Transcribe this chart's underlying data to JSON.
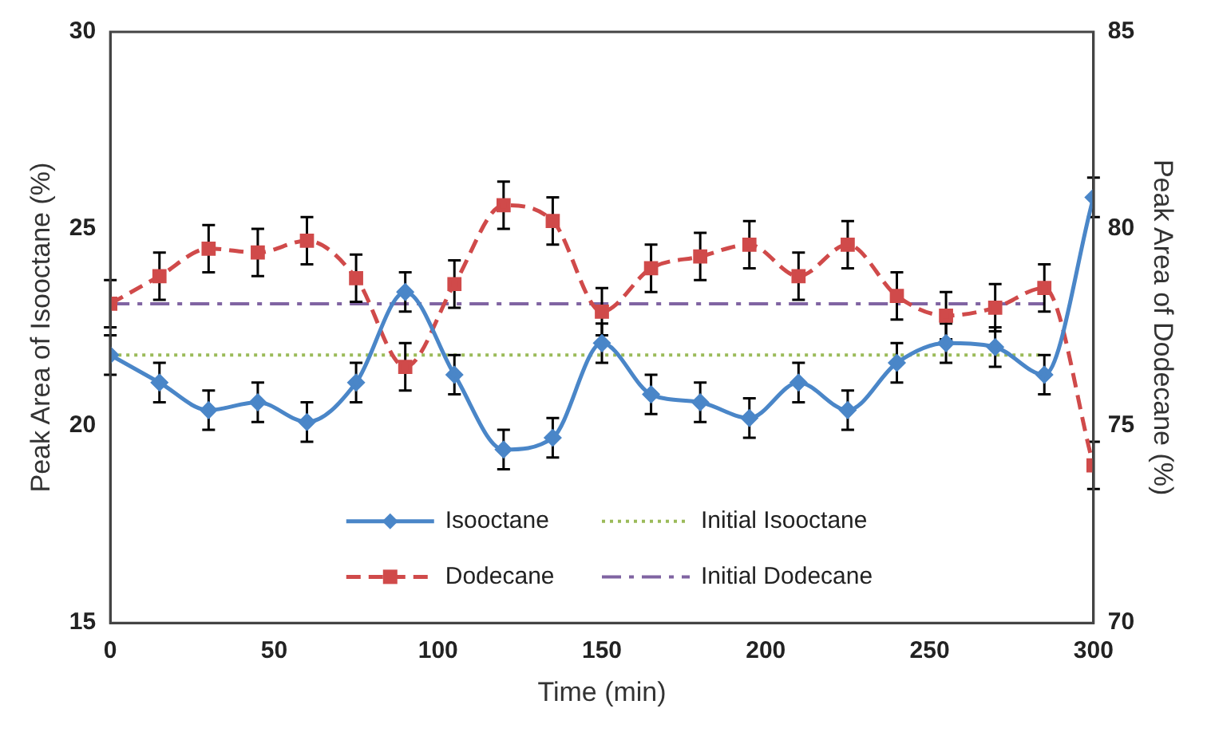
{
  "chart_data": {
    "type": "line",
    "xlabel": "Time (min)",
    "ylabel": "Peak Area of Isooctane (%)",
    "y2label": "Peak Area of Dodecane (%)",
    "x": [
      0,
      15,
      30,
      45,
      60,
      75,
      90,
      105,
      120,
      135,
      150,
      165,
      180,
      195,
      210,
      225,
      240,
      255,
      270,
      285,
      300
    ],
    "series": [
      {
        "name": "Isooctane",
        "color": "#4a86c8",
        "marker": "diamond",
        "line_style": "solid",
        "values": [
          21.8,
          21.1,
          20.4,
          20.6,
          20.1,
          21.1,
          23.4,
          21.3,
          19.4,
          19.7,
          22.1,
          20.8,
          20.6,
          20.2,
          21.1,
          20.4,
          21.6,
          22.1,
          22.0,
          21.3,
          25.8
        ],
        "errors": [
          0.5,
          0.5,
          0.5,
          0.5,
          0.5,
          0.5,
          0.5,
          0.5,
          0.5,
          0.5,
          0.5,
          0.5,
          0.5,
          0.5,
          0.5,
          0.5,
          0.5,
          0.5,
          0.5,
          0.5,
          0.5
        ]
      },
      {
        "name": "Dodecane",
        "color": "#d04a4a",
        "marker": "square",
        "line_style": "dashed",
        "axis": "y2",
        "values": [
          78.1,
          78.8,
          79.5,
          79.4,
          79.7,
          78.75,
          76.5,
          78.6,
          80.6,
          80.2,
          77.9,
          79.0,
          79.3,
          79.6,
          78.8,
          79.6,
          78.3,
          77.8,
          78.0,
          78.5,
          74.0
        ],
        "errors": [
          0.6,
          0.6,
          0.6,
          0.6,
          0.6,
          0.6,
          0.6,
          0.6,
          0.6,
          0.6,
          0.6,
          0.6,
          0.6,
          0.6,
          0.6,
          0.6,
          0.6,
          0.6,
          0.6,
          0.6,
          0.6
        ]
      }
    ],
    "ref_lines": [
      {
        "axis": "y",
        "value": 21.8,
        "label": "Initial Isooctane",
        "color": "#9bbb59",
        "line_style": "dotted"
      },
      {
        "axis": "y2",
        "value": 78.1,
        "label": "Initial Dodecane",
        "color": "#8064a2",
        "line_style": "dashed"
      }
    ],
    "xlim": [
      0,
      300
    ],
    "xticks": [
      0,
      50,
      100,
      150,
      200,
      250,
      300
    ],
    "ylim": [
      15,
      30
    ],
    "yticks": [
      15,
      20,
      25,
      30
    ],
    "y2lim": [
      70,
      85
    ],
    "y2ticks": [
      70,
      75,
      80,
      85
    ],
    "grid": false,
    "legend": "bottom"
  }
}
